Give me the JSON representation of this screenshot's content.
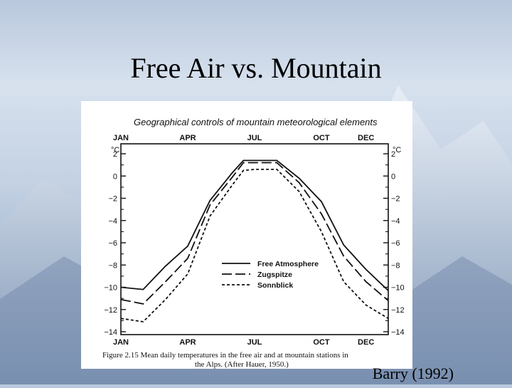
{
  "slide": {
    "title": "Free Air vs. Mountain",
    "credit": "Barry (1992)"
  },
  "figure": {
    "header": "Geographical controls of mountain meteorological elements",
    "caption_line1": "Figure 2.15   Mean daily temperatures in the free air and at mountain stations in",
    "caption_line2": "the Alps. (After Hauer, 1950.)"
  },
  "chart_data": {
    "type": "line",
    "title": "",
    "xlabel": "",
    "ylabel": "°C",
    "y2label": "°C",
    "month_ticks": [
      "JAN",
      "APR",
      "JUL",
      "OCT",
      "DEC"
    ],
    "month_tick_positions": [
      0,
      3,
      6,
      9,
      11
    ],
    "x": [
      0,
      1,
      2,
      3,
      4,
      5,
      5.5,
      6,
      7,
      8,
      9,
      10,
      11,
      12
    ],
    "ylim": [
      -14,
      2
    ],
    "yticks": [
      2,
      0,
      -2,
      -4,
      -6,
      -8,
      -10,
      -12,
      -14
    ],
    "ytick_labels": [
      "2",
      "0",
      "−2",
      "−4",
      "−6",
      "−8",
      "−10",
      "−12",
      "−14"
    ],
    "ytick_labels_right": [
      "2",
      "0",
      "−2",
      "−4",
      "−6",
      "−8",
      "−10",
      "−12",
      "−14"
    ],
    "series": [
      {
        "name": "Free Atmosphere",
        "style": "solid",
        "values": [
          -10,
          -10.2,
          -8.1,
          -6.3,
          -2.2,
          0.3,
          1.4,
          1.4,
          1.4,
          -0.2,
          -2.3,
          -6.2,
          -8.4,
          -10.3
        ]
      },
      {
        "name": "Zugspitze",
        "style": "dashed",
        "values": [
          -11.1,
          -11.5,
          -9.5,
          -7.4,
          -2.6,
          -0.1,
          1.2,
          1.2,
          1.2,
          -0.6,
          -3.4,
          -7.2,
          -9.5,
          -11.2
        ]
      },
      {
        "name": "Sonnblick",
        "style": "dotted",
        "values": [
          -12.8,
          -13.1,
          -11.1,
          -8.8,
          -3.6,
          -0.8,
          0.5,
          0.6,
          0.6,
          -1.4,
          -5.0,
          -9.5,
          -11.6,
          -12.8
        ]
      }
    ],
    "legend_position": "center-right",
    "grid": false,
    "colors": {
      "line": "#111111",
      "frame": "#111111"
    }
  }
}
